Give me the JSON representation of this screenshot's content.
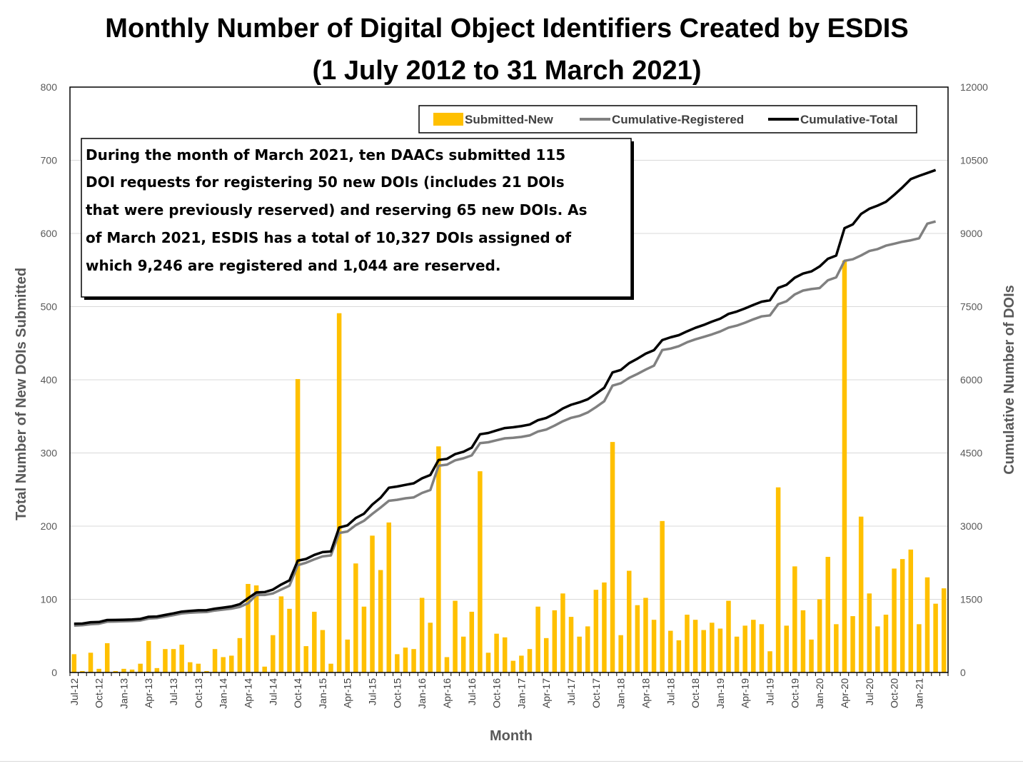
{
  "chart_data": {
    "type": "bar+line",
    "title_lines": [
      "Monthly Number of Digital Object Identifiers Created by ESDIS",
      "(1 July 2012 to 31 March 2021)"
    ],
    "xlabel": "Month",
    "ylabel_left": "Total Number of New DOIs Submitted",
    "ylabel_right": "Cumulative Number of DOIs",
    "ylim_left": [
      0,
      800
    ],
    "ylim_right": [
      0,
      12000
    ],
    "yticks_left": [
      "0",
      "100",
      "200",
      "300",
      "400",
      "500",
      "600",
      "700",
      "800"
    ],
    "yticks_right": [
      "0",
      "1500",
      "3000",
      "4500",
      "6000",
      "7500",
      "9000",
      "10500",
      "12000"
    ],
    "xtick_labels": [
      "Jul-12",
      "Oct-12",
      "Jan-13",
      "Apr-13",
      "Jul-13",
      "Oct-13",
      "Jan-14",
      "Apr-14",
      "Jul-14",
      "Oct-14",
      "Jan-15",
      "Apr-15",
      "Jul-15",
      "Oct-15",
      "Jan-16",
      "Apr-16",
      "Jul-16",
      "Oct-16",
      "Jan-17",
      "Apr-17",
      "Jul-17",
      "Oct-17",
      "Jan-18",
      "Apr-18",
      "Jul-18",
      "Oct-18",
      "Jan-19",
      "Apr-19",
      "Jul-19",
      "Oct-19",
      "Jan-20",
      "Apr-20",
      "Jul-20",
      "Oct-20",
      "Jan-21"
    ],
    "grid": true,
    "legend_position": "top-right",
    "categories_start": "Jul-12",
    "categories_end": "Mar-21",
    "series": [
      {
        "name": "Submitted-New",
        "type": "bar",
        "axis": "left",
        "color": "#FFC000",
        "values": [
          25,
          2,
          27,
          5,
          40,
          2,
          5,
          4,
          12,
          43,
          6,
          32,
          32,
          38,
          14,
          12,
          2,
          32,
          21,
          23,
          47,
          121,
          119,
          8,
          51,
          104,
          87,
          401,
          36,
          83,
          58,
          12,
          491,
          45,
          149,
          90,
          187,
          140,
          205,
          25,
          34,
          32,
          102,
          68,
          309,
          21,
          98,
          49,
          83,
          275,
          27,
          53,
          48,
          16,
          23,
          32,
          90,
          47,
          85,
          108,
          76,
          49,
          63,
          113,
          123,
          315,
          51,
          139,
          92,
          102,
          72,
          207,
          57,
          44,
          79,
          72,
          58,
          68,
          60,
          98,
          49,
          64,
          72,
          66,
          29,
          253,
          64,
          145,
          85,
          45,
          100,
          158,
          66,
          563,
          77,
          213,
          108,
          63,
          79,
          142,
          155,
          168,
          66,
          130,
          94,
          115
        ]
      },
      {
        "name": "Cumulative-Registered",
        "type": "line",
        "axis": "right",
        "color": "#808080",
        "values": [
          960,
          970,
          990,
          1000,
          1040,
          1045,
          1050,
          1055,
          1065,
          1105,
          1115,
          1145,
          1175,
          1210,
          1225,
          1235,
          1240,
          1270,
          1290,
          1310,
          1345,
          1420,
          1590,
          1590,
          1620,
          1700,
          1780,
          2200,
          2250,
          2320,
          2380,
          2400,
          2860,
          2890,
          3020,
          3110,
          3250,
          3380,
          3520,
          3540,
          3570,
          3590,
          3680,
          3740,
          4240,
          4260,
          4350,
          4390,
          4450,
          4700,
          4720,
          4760,
          4800,
          4810,
          4830,
          4860,
          4940,
          4980,
          5060,
          5150,
          5220,
          5260,
          5330,
          5440,
          5560,
          5880,
          5930,
          6040,
          6120,
          6210,
          6290,
          6610,
          6640,
          6690,
          6770,
          6830,
          6880,
          6930,
          6990,
          7070,
          7110,
          7170,
          7240,
          7300,
          7320,
          7550,
          7610,
          7750,
          7830,
          7860,
          7880,
          8040,
          8100,
          8440,
          8470,
          8550,
          8640,
          8680,
          8750,
          8790,
          8830,
          8860,
          8900,
          9200,
          9246
        ]
      },
      {
        "name": "Cumulative-Total",
        "type": "line",
        "axis": "right",
        "color": "#000000",
        "values": [
          1000,
          1002,
          1030,
          1035,
          1075,
          1077,
          1082,
          1086,
          1098,
          1141,
          1147,
          1179,
          1211,
          1249,
          1263,
          1275,
          1277,
          1309,
          1330,
          1353,
          1400,
          1521,
          1640,
          1648,
          1699,
          1803,
          1890,
          2291,
          2327,
          2410,
          2468,
          2480,
          2971,
          3016,
          3165,
          3255,
          3442,
          3582,
          3787,
          3812,
          3846,
          3878,
          3980,
          4048,
          4357,
          4378,
          4476,
          4525,
          4608,
          4883,
          4910,
          4963,
          5011,
          5027,
          5050,
          5082,
          5172,
          5219,
          5304,
          5412,
          5488,
          5537,
          5600,
          5713,
          5836,
          6151,
          6202,
          6341,
          6433,
          6535,
          6607,
          6814,
          6871,
          6915,
          6994,
          7066,
          7124,
          7192,
          7252,
          7350,
          7399,
          7463,
          7535,
          7601,
          7630,
          7883,
          7947,
          8092,
          8177,
          8222,
          8322,
          8480,
          8546,
          9109,
          9186,
          9399,
          9507,
          9570,
          9649,
          9791,
          9946,
          10114,
          10180,
          10240,
          10300
        ]
      }
    ]
  },
  "annotation": {
    "lines": [
      "During the month of March 2021, ten DAACs submitted 115",
      "DOI requests for registering 50 new DOIs (includes 21 DOIs",
      "that were previously reserved) and reserving 65 new DOIs. As",
      "of March 2021, ESDIS has a total of 10,327 DOIs assigned of",
      "which 9,246 are registered and 1,044 are reserved."
    ]
  }
}
